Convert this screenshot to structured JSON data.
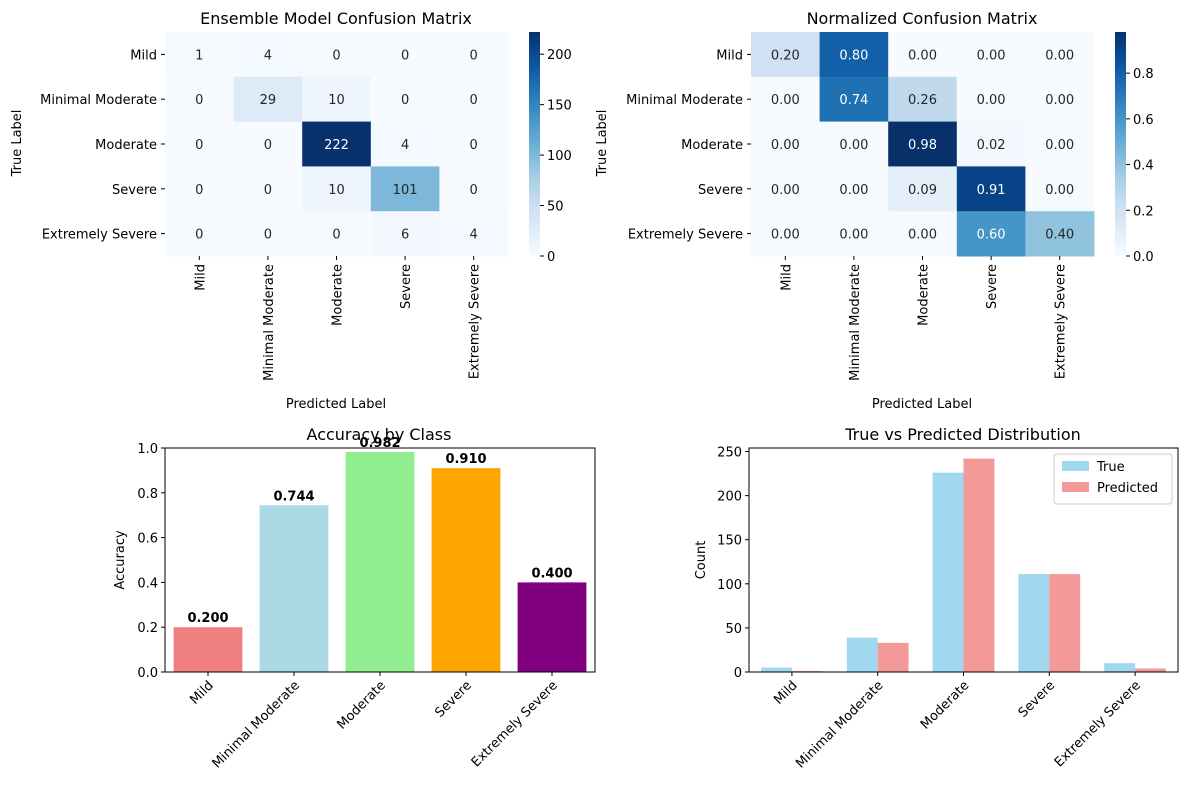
{
  "chart_data": [
    {
      "type": "heatmap",
      "title": "Ensemble Model Confusion Matrix",
      "xlabel": "Predicted Label",
      "ylabel": "True Label",
      "rows": [
        "Mild",
        "Minimal Moderate",
        "Moderate",
        "Severe",
        "Extremely Severe"
      ],
      "cols": [
        "Mild",
        "Minimal Moderate",
        "Moderate",
        "Severe",
        "Extremely Severe"
      ],
      "values": [
        [
          1,
          4,
          0,
          0,
          0
        ],
        [
          0,
          29,
          10,
          0,
          0
        ],
        [
          0,
          0,
          222,
          4,
          0
        ],
        [
          0,
          0,
          10,
          101,
          0
        ],
        [
          0,
          0,
          0,
          6,
          4
        ]
      ],
      "vmin": 0,
      "vmax": 222,
      "cell_labels": [
        [
          "1",
          "4",
          "0",
          "0",
          "0"
        ],
        [
          "0",
          "29",
          "10",
          "0",
          "0"
        ],
        [
          "0",
          "0",
          "222",
          "4",
          "0"
        ],
        [
          "0",
          "0",
          "10",
          "101",
          "0"
        ],
        [
          "0",
          "0",
          "0",
          "6",
          "4"
        ]
      ],
      "colorbar_ticks": [
        0,
        50,
        100,
        150,
        200
      ],
      "colorbar_tick_labels": [
        "0",
        "50",
        "100",
        "150",
        "200"
      ],
      "colormap": "Blues"
    },
    {
      "type": "heatmap",
      "title": "Normalized Confusion Matrix",
      "xlabel": "Predicted Label",
      "ylabel": "True Label",
      "rows": [
        "Mild",
        "Minimal Moderate",
        "Moderate",
        "Severe",
        "Extremely Severe"
      ],
      "cols": [
        "Mild",
        "Minimal Moderate",
        "Moderate",
        "Severe",
        "Extremely Severe"
      ],
      "values": [
        [
          0.2,
          0.8,
          0.0,
          0.0,
          0.0
        ],
        [
          0.0,
          0.74,
          0.26,
          0.0,
          0.0
        ],
        [
          0.0,
          0.0,
          0.98,
          0.02,
          0.0
        ],
        [
          0.0,
          0.0,
          0.09,
          0.91,
          0.0
        ],
        [
          0.0,
          0.0,
          0.0,
          0.6,
          0.4
        ]
      ],
      "vmin": 0,
      "vmax": 0.98,
      "cell_labels": [
        [
          "0.20",
          "0.80",
          "0.00",
          "0.00",
          "0.00"
        ],
        [
          "0.00",
          "0.74",
          "0.26",
          "0.00",
          "0.00"
        ],
        [
          "0.00",
          "0.00",
          "0.98",
          "0.02",
          "0.00"
        ],
        [
          "0.00",
          "0.00",
          "0.09",
          "0.91",
          "0.00"
        ],
        [
          "0.00",
          "0.00",
          "0.00",
          "0.60",
          "0.40"
        ]
      ],
      "colorbar_ticks": [
        0.0,
        0.2,
        0.4,
        0.6,
        0.8
      ],
      "colorbar_tick_labels": [
        "0.0",
        "0.2",
        "0.4",
        "0.6",
        "0.8"
      ],
      "colormap": "Blues"
    },
    {
      "type": "bar",
      "title": "Accuracy by Class",
      "xlabel": "",
      "ylabel": "Accuracy",
      "categories": [
        "Mild",
        "Minimal Moderate",
        "Moderate",
        "Severe",
        "Extremely Severe"
      ],
      "values": [
        0.2,
        0.744,
        0.982,
        0.91,
        0.4
      ],
      "value_labels": [
        "0.200",
        "0.744",
        "0.982",
        "0.910",
        "0.400"
      ],
      "colors": [
        "#f08080",
        "#add8e6",
        "#90ee90",
        "#ffa500",
        "#800080"
      ],
      "ylim": [
        0,
        1.0
      ],
      "yticks": [
        0.0,
        0.2,
        0.4,
        0.6,
        0.8,
        1.0
      ],
      "ytick_labels": [
        "0.0",
        "0.2",
        "0.4",
        "0.6",
        "0.8",
        "1.0"
      ],
      "grid": false
    },
    {
      "type": "bar",
      "title": "True vs Predicted Distribution",
      "xlabel": "",
      "ylabel": "Count",
      "categories": [
        "Mild",
        "Minimal Moderate",
        "Moderate",
        "Severe",
        "Extremely Severe"
      ],
      "series": [
        {
          "name": "True",
          "values": [
            5,
            39,
            226,
            111,
            10
          ],
          "color": "#87ceeb"
        },
        {
          "name": "Predicted",
          "values": [
            1,
            33,
            242,
            111,
            4
          ],
          "color": "#f08080"
        }
      ],
      "ylim": [
        0,
        254
      ],
      "yticks": [
        0,
        50,
        100,
        150,
        200,
        250
      ],
      "ytick_labels": [
        "0",
        "50",
        "100",
        "150",
        "200",
        "250"
      ],
      "legend": "top-right",
      "grid": false
    }
  ]
}
